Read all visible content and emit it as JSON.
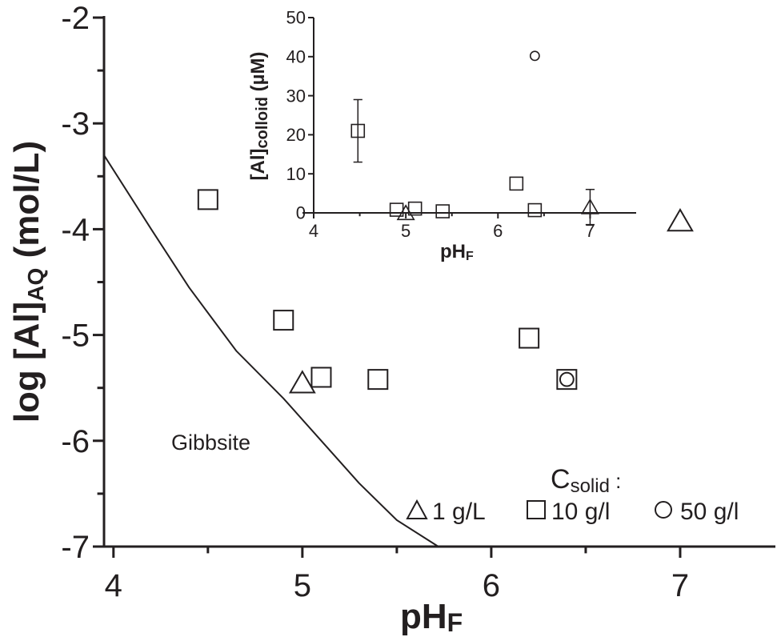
{
  "chart_data": [
    {
      "type": "scatter",
      "ylabel_main": "log [Al]",
      "ylabel_sub": "AQ",
      "ylabel_tail": " (mol/L)",
      "xlabel_main": "pH",
      "xlabel_sub": "F",
      "xlim": [
        3.95,
        7.5
      ],
      "ylim": [
        -7,
        -2
      ],
      "xticks": [
        "4",
        "5",
        "6",
        "7"
      ],
      "yticks": [
        "-2",
        "-3",
        "-4",
        "-5",
        "-6",
        "-7"
      ],
      "series": [
        {
          "name": "1 g/L",
          "marker": "triangle",
          "points": [
            [
              5.0,
              -5.45
            ],
            [
              7.0,
              -3.92
            ]
          ]
        },
        {
          "name": "10 g/l",
          "marker": "square",
          "points": [
            [
              4.5,
              -3.72
            ],
            [
              4.9,
              -4.86
            ],
            [
              5.1,
              -5.4
            ],
            [
              5.4,
              -5.42
            ],
            [
              6.2,
              -5.03
            ],
            [
              6.4,
              -5.42
            ]
          ]
        },
        {
          "name": "50 g/l",
          "marker": "circle",
          "points": [
            [
              6.4,
              -5.42
            ]
          ]
        }
      ],
      "curve": {
        "label": "Gibbsite",
        "points": [
          [
            3.95,
            -3.3
          ],
          [
            4.2,
            -4.0
          ],
          [
            4.4,
            -4.55
          ],
          [
            4.65,
            -5.15
          ],
          [
            4.9,
            -5.6
          ],
          [
            5.1,
            -6.0
          ],
          [
            5.3,
            -6.4
          ],
          [
            5.5,
            -6.75
          ],
          [
            5.72,
            -7.0
          ]
        ]
      },
      "legend": {
        "title_main": "C",
        "title_sub": "solid",
        "title_tail": " :",
        "position": "bottom-right"
      }
    },
    {
      "type": "scatter",
      "ylabel_main": "[Al]",
      "ylabel_sub": "colloid",
      "ylabel_tail": " (µM)",
      "xlabel_main": "pH",
      "xlabel_sub": "F",
      "xlim": [
        4,
        7.5
      ],
      "ylim": [
        0,
        50
      ],
      "xticks": [
        "4",
        "5",
        "6",
        "7"
      ],
      "yticks": [
        "0",
        "10",
        "20",
        "30",
        "40",
        "50"
      ],
      "series": [
        {
          "name": "1 g/L",
          "marker": "triangle",
          "points": [
            [
              5.0,
              0
            ],
            [
              7.0,
              1.5
            ]
          ],
          "errors": [
            0,
            4.5
          ]
        },
        {
          "name": "10 g/l",
          "marker": "square",
          "points": [
            [
              4.48,
              21
            ],
            [
              4.9,
              0.8
            ],
            [
              5.1,
              1.1
            ],
            [
              5.4,
              0.4
            ],
            [
              6.2,
              7.5
            ],
            [
              6.4,
              0.7
            ]
          ],
          "errors": [
            8,
            0,
            0,
            0,
            0,
            0
          ]
        },
        {
          "name": "50 g/l",
          "marker": "circle",
          "points": [
            [
              6.4,
              40.2
            ]
          ],
          "errors": [
            0
          ]
        }
      ]
    }
  ]
}
